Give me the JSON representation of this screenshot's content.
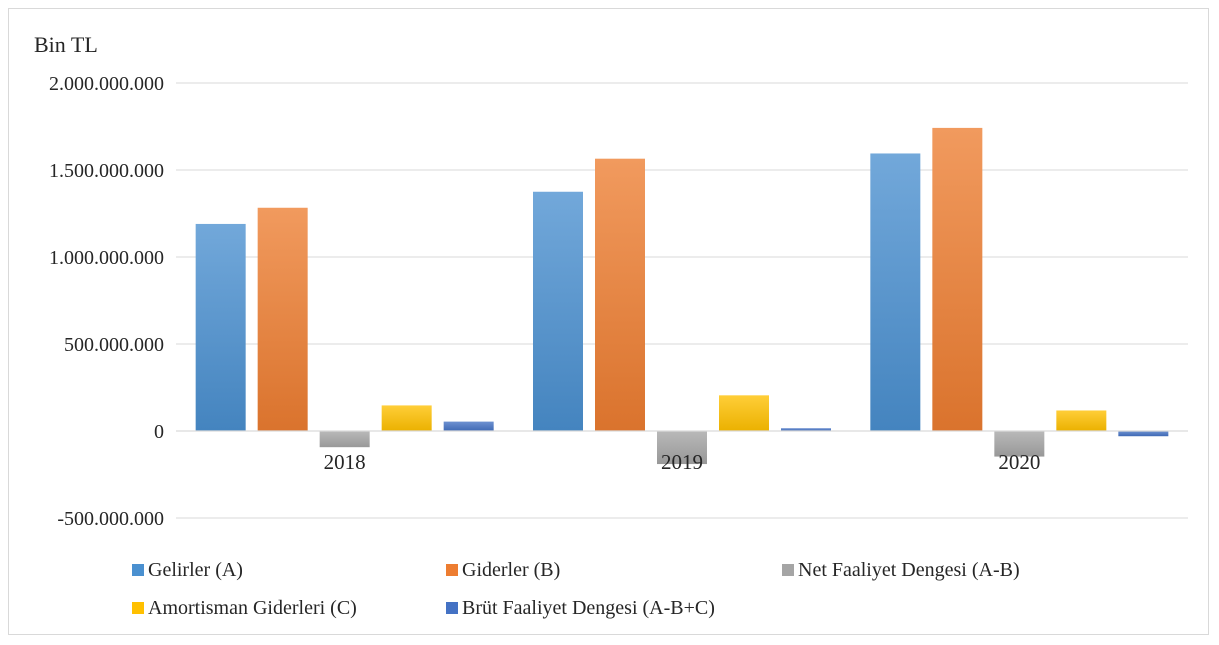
{
  "chart_data": {
    "type": "bar",
    "unit_label": "Bin TL",
    "categories": [
      "2018",
      "2019",
      "2020"
    ],
    "ylim": [
      -500000000,
      2000000000
    ],
    "yticks": [
      2000000000,
      1500000000,
      1000000000,
      500000000,
      0,
      -500000000
    ],
    "ytick_labels": [
      "2.000.000.000",
      "1.500.000.000",
      "1.000.000.000",
      "500.000.000",
      "0",
      "-500.000.000"
    ],
    "grid": true,
    "legend_position": "bottom",
    "series": [
      {
        "name": "Gelirler (A)",
        "color": "#4a90d0",
        "values": [
          1190000000,
          1375000000,
          1595000000
        ]
      },
      {
        "name": "Giderler (B)",
        "color": "#ed7d31",
        "values": [
          1283000000,
          1565000000,
          1742000000
        ]
      },
      {
        "name": "Net Faaliyet Dengesi (A-B)",
        "color": "#a5a5a5",
        "values": [
          -93000000,
          -190000000,
          -147000000
        ]
      },
      {
        "name": "Amortisman Giderleri (C)",
        "color": "#ffc000",
        "values": [
          147000000,
          205000000,
          118000000
        ]
      },
      {
        "name": "Brüt Faaliyet Dengesi (A-B+C)",
        "color": "#4472c4",
        "values": [
          54000000,
          16000000,
          -30000000
        ]
      }
    ]
  }
}
